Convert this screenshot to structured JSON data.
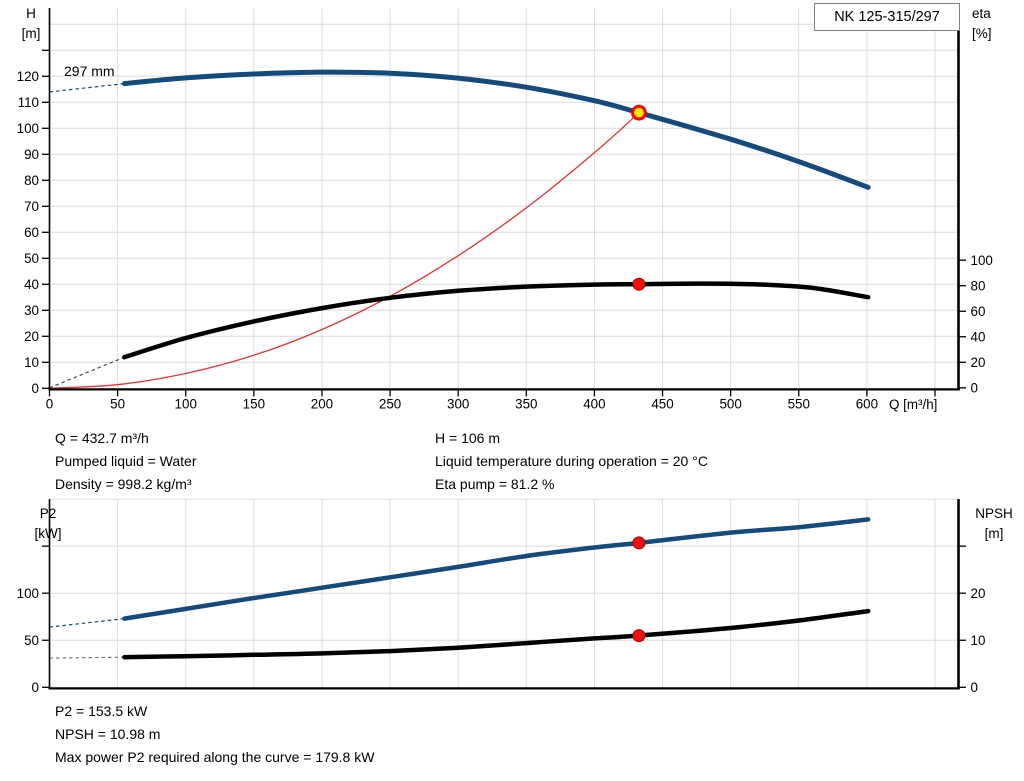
{
  "colors": {
    "grid": "#dcdcdc",
    "axis": "#000000",
    "curve_blue": "#154a7d",
    "curve_black": "#000000",
    "system_red": "#e63232",
    "duty_fill": "#ffec00",
    "duty_ring": "#ff0000",
    "dot": "#ee1111",
    "dot_edge": "#a50000"
  },
  "chart_data": [
    {
      "type": "line",
      "id": "head-efficiency-chart",
      "title": "NK 125-315/297",
      "xlabel": "Q [m³/h]",
      "ylabel_left": [
        "H",
        "[m]"
      ],
      "ylabel_right": [
        "eta",
        "[%]"
      ],
      "curve_label": "297 mm",
      "xlim": [
        0,
        667
      ],
      "ylim_left": [
        0,
        146
      ],
      "ylim_right": [
        0,
        100
      ],
      "grid": true,
      "x_ticks": [
        0,
        50,
        100,
        150,
        200,
        250,
        300,
        350,
        400,
        450,
        500,
        550,
        600
      ],
      "x_unlabeled_ticks": [
        650
      ],
      "y_left_ticks": [
        0,
        10,
        20,
        30,
        40,
        50,
        60,
        70,
        80,
        90,
        100,
        110,
        120
      ],
      "y_left_unlabeled_ticks": [
        130
      ],
      "y_right_ticks": [
        0,
        20,
        40,
        60,
        80,
        100
      ],
      "y_right_unlabeled_ticks": [],
      "series": [
        {
          "name": "system-curve",
          "axis": "left",
          "color": "#e63232",
          "width": 1.3,
          "points": [
            [
              0,
              0
            ],
            [
              50,
              1.4
            ],
            [
              100,
              5.7
            ],
            [
              150,
              12.7
            ],
            [
              200,
              22.6
            ],
            [
              250,
              35.4
            ],
            [
              300,
              51.0
            ],
            [
              350,
              69.4
            ],
            [
              400,
              90.6
            ],
            [
              432.7,
              106
            ]
          ]
        },
        {
          "name": "efficiency",
          "axis": "right",
          "color": "#000000",
          "width": 4.5,
          "dash_color": "#4a4a4a",
          "dash_lead": [
            [
              0,
              0
            ],
            [
              55,
              24
            ]
          ],
          "points": [
            [
              55,
              24
            ],
            [
              100,
              39
            ],
            [
              150,
              52
            ],
            [
              200,
              62.5
            ],
            [
              250,
              70.5
            ],
            [
              300,
              76
            ],
            [
              350,
              79.3
            ],
            [
              400,
              80.9
            ],
            [
              432.7,
              81.2
            ],
            [
              480,
              81.7
            ],
            [
              520,
              81
            ],
            [
              560,
              78.3
            ],
            [
              601,
              71
            ]
          ]
        },
        {
          "name": "head-297mm",
          "axis": "left",
          "color": "#154a7d",
          "width": 5,
          "dash_color": "#154a7d",
          "dash_lead": [
            [
              0,
              114
            ],
            [
              55,
              117.2
            ]
          ],
          "points": [
            [
              55,
              117.2
            ],
            [
              100,
              119.4
            ],
            [
              150,
              120.9
            ],
            [
              200,
              121.6
            ],
            [
              250,
              121.2
            ],
            [
              300,
              119.3
            ],
            [
              350,
              115.8
            ],
            [
              400,
              110.6
            ],
            [
              432.7,
              106
            ],
            [
              500,
              95.8
            ],
            [
              550,
              87.2
            ],
            [
              601,
              77.3
            ]
          ]
        }
      ],
      "duty_points": [
        {
          "name": "duty-point-head",
          "axis": "left",
          "q": 432.7,
          "v": 106,
          "style": "yellow-ring"
        },
        {
          "name": "duty-point-eta",
          "axis": "right",
          "q": 432.7,
          "v": 81.2,
          "style": "red-dot"
        }
      ]
    },
    {
      "type": "line",
      "id": "power-npsh-chart",
      "ylabel_left": [
        "P2",
        "[kW]"
      ],
      "ylabel_right": [
        "NPSH",
        "[m]"
      ],
      "xlim": [
        0,
        667
      ],
      "ylim_left": [
        0,
        200
      ],
      "ylim_right": [
        0,
        40
      ],
      "grid": true,
      "x_ticks": [],
      "x_unlabeled_ticks": [],
      "y_left_ticks": [
        0,
        50,
        100
      ],
      "y_left_unlabeled_ticks": [
        150
      ],
      "y_right_ticks": [
        0,
        10,
        20
      ],
      "y_right_unlabeled_ticks": [
        30
      ],
      "series": [
        {
          "name": "power-p2",
          "axis": "left",
          "color": "#154a7d",
          "width": 4.5,
          "dash_color": "#154a7d",
          "dash_lead": [
            [
              0,
              64
            ],
            [
              55,
              73
            ]
          ],
          "points": [
            [
              55,
              73
            ],
            [
              100,
              83.3
            ],
            [
              150,
              94.9
            ],
            [
              200,
              105.8
            ],
            [
              250,
              116.9
            ],
            [
              300,
              128
            ],
            [
              350,
              139.5
            ],
            [
              400,
              148.6
            ],
            [
              432.7,
              153.5
            ],
            [
              500,
              164.4
            ],
            [
              550,
              170.1
            ],
            [
              601,
              178.4
            ]
          ]
        },
        {
          "name": "npsh",
          "axis": "right",
          "color": "#000000",
          "width": 4.5,
          "dash_color": "#787878",
          "dash_lead": [
            [
              0,
              6.2
            ],
            [
              55,
              6.4
            ]
          ],
          "points": [
            [
              55,
              6.4
            ],
            [
              100,
              6.6
            ],
            [
              150,
              6.9
            ],
            [
              200,
              7.2
            ],
            [
              250,
              7.7
            ],
            [
              300,
              8.4
            ],
            [
              350,
              9.4
            ],
            [
              400,
              10.4
            ],
            [
              432.7,
              11
            ],
            [
              500,
              12.6
            ],
            [
              550,
              14.2
            ],
            [
              601,
              16.2
            ]
          ]
        }
      ],
      "duty_points": [
        {
          "name": "duty-point-p2",
          "axis": "left",
          "q": 432.7,
          "v": 153.5,
          "style": "red-dot"
        },
        {
          "name": "duty-point-npsh",
          "axis": "right",
          "q": 432.7,
          "v": 10.98,
          "style": "red-dot"
        }
      ]
    }
  ],
  "info_top": {
    "col1": [
      "Q = 432.7 m³/h",
      "Pumped liquid = Water",
      "Density = 998.2 kg/m³"
    ],
    "col2": [
      "H = 106 m",
      "Liquid temperature during operation = 20 °C",
      "Eta pump = 81.2 %"
    ]
  },
  "info_bottom": {
    "lines": [
      "P2 = 153.5 kW",
      "NPSH = 10.98 m",
      "Max power P2 required along the curve = 179.8 kW"
    ]
  }
}
